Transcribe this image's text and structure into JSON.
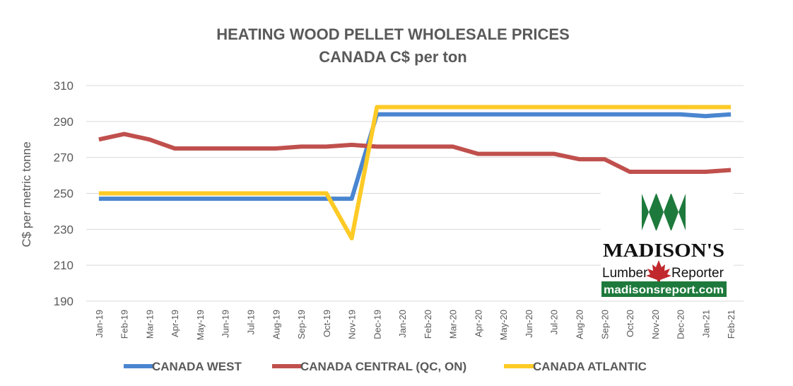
{
  "chart_data": {
    "type": "line",
    "title": [
      "HEATING WOOD PELLET WHOLESALE PRICES",
      "CANADA C$ per ton"
    ],
    "ylabel": "C$ per metric tonne",
    "xlabel": "",
    "ylim": [
      190,
      310
    ],
    "yticks": [
      190,
      210,
      230,
      250,
      270,
      290,
      310
    ],
    "grid": "horizontal",
    "legend_position": "bottom",
    "categories": [
      "Jan-19",
      "Feb-19",
      "Mar-19",
      "Apr-19",
      "May-19",
      "Jun-19",
      "Jul-19",
      "Aug-19",
      "Sep-19",
      "Oct-19",
      "Nov-19",
      "Dec-19",
      "Jan-20",
      "Feb-20",
      "Mar-20",
      "Apr-20",
      "May-20",
      "Jun-20",
      "Jul-20",
      "Aug-20",
      "Sep-20",
      "Oct-20",
      "Nov-20",
      "Dec-20",
      "Jan-21",
      "Feb-21"
    ],
    "series": [
      {
        "name": "CANADA WEST",
        "color": "#4a86d0",
        "values": [
          247,
          247,
          247,
          247,
          247,
          247,
          247,
          247,
          247,
          247,
          247,
          294,
          294,
          294,
          294,
          294,
          294,
          294,
          294,
          294,
          294,
          294,
          294,
          294,
          293,
          294
        ]
      },
      {
        "name": "CANADA CENTRAL (QC, ON)",
        "color": "#c0504d",
        "values": [
          280,
          283,
          280,
          275,
          275,
          275,
          275,
          275,
          276,
          276,
          277,
          276,
          276,
          276,
          276,
          272,
          272,
          272,
          272,
          269,
          269,
          262,
          262,
          262,
          262,
          263
        ]
      },
      {
        "name": "CANADA ATLANTIC",
        "color": "#fdca26",
        "values": [
          250,
          250,
          250,
          250,
          250,
          250,
          250,
          250,
          250,
          250,
          225,
          298,
          298,
          298,
          298,
          298,
          298,
          298,
          298,
          298,
          298,
          298,
          298,
          298,
          298,
          298
        ]
      }
    ]
  },
  "logo": {
    "name": "MADISON'S",
    "left_word": "Lumber",
    "right_word": "Reporter",
    "url": "madisonsreport.com",
    "colors": {
      "green": "#1e7a3c",
      "leaf": "#c0282d"
    }
  }
}
